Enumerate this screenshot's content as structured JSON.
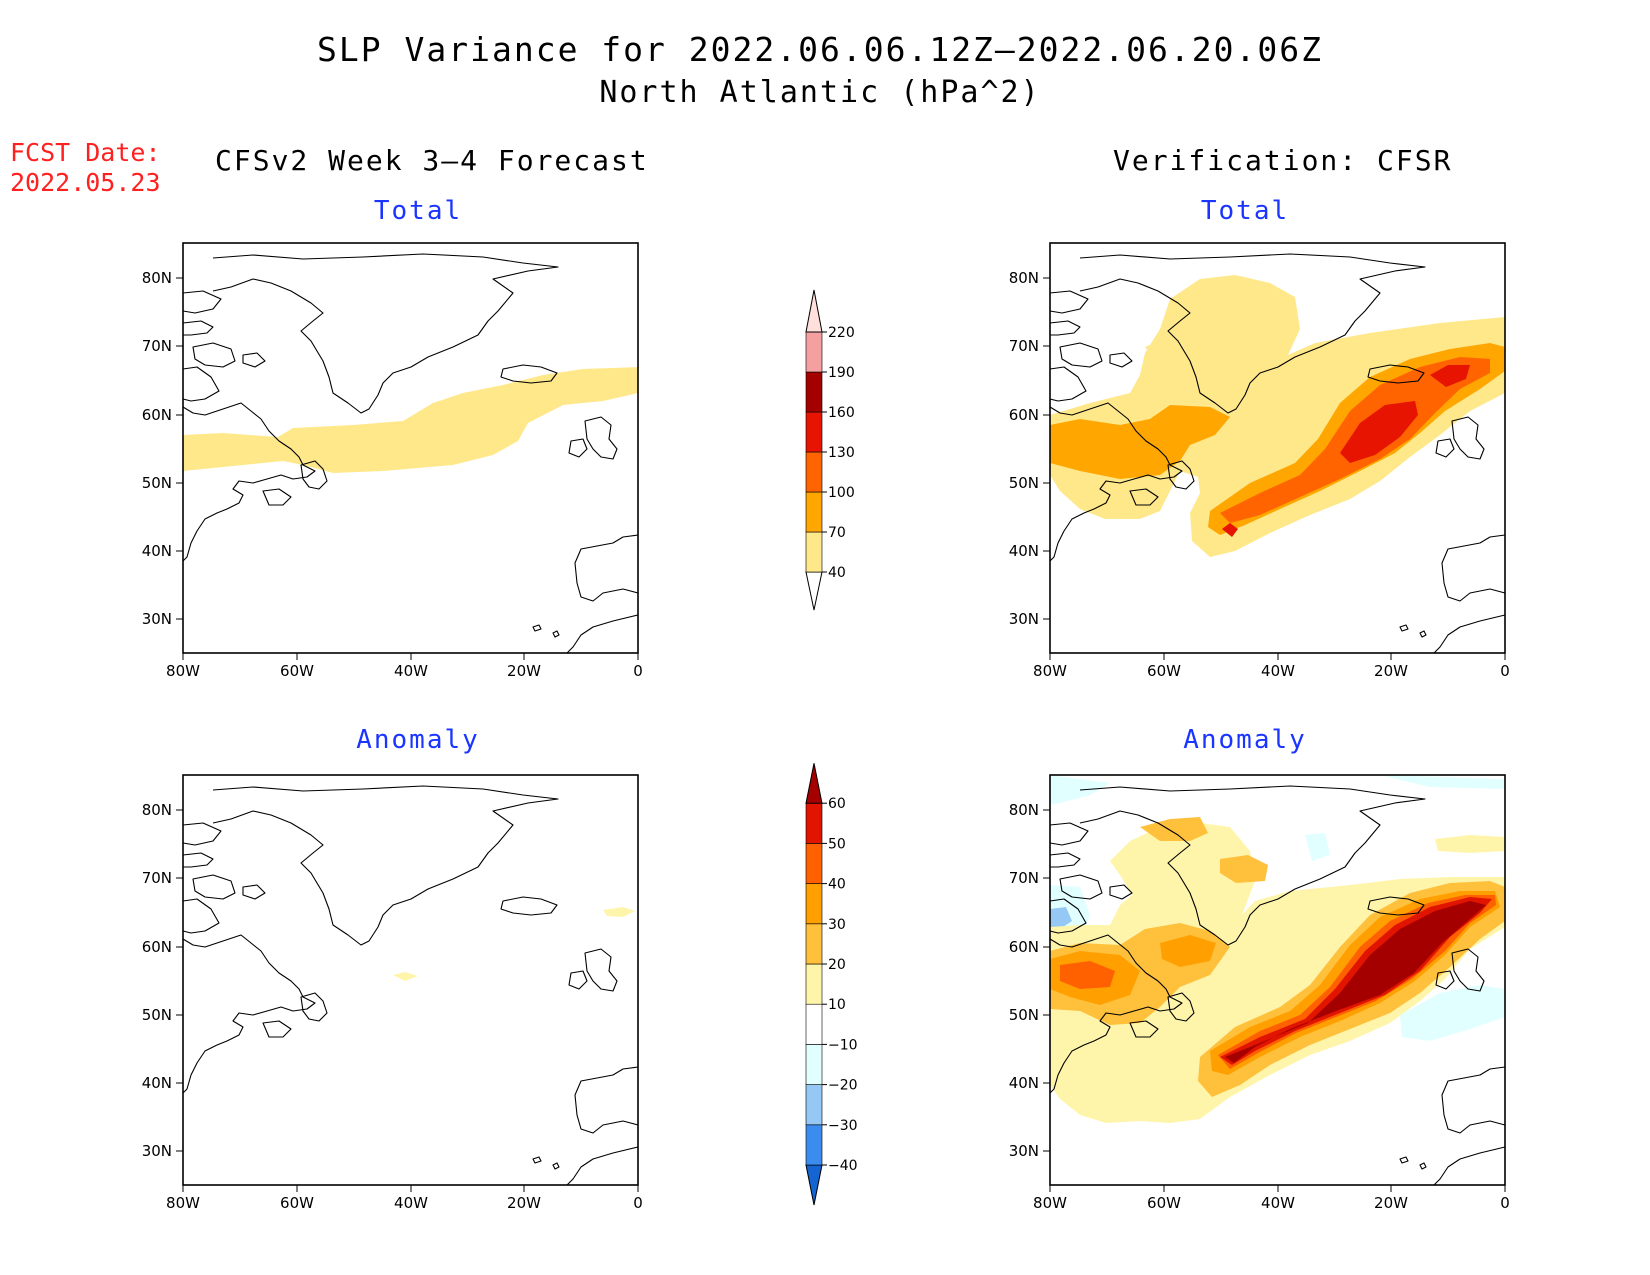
{
  "title": {
    "line1": "SLP Variance for 2022.06.06.12Z—2022.06.20.06Z",
    "line2": "North Atlantic (hPa^2)"
  },
  "forecast": {
    "label": "FCST Date:",
    "date": "2022.05.23"
  },
  "columns": {
    "left": "CFSv2 Week 3—4 Forecast",
    "right": "Verification: CFSR"
  },
  "panel_titles": {
    "forecast_total": "Total",
    "verification_total": "Total",
    "forecast_anomaly": "Anomaly",
    "verification_anomaly": "Anomaly"
  },
  "axes": {
    "lat_labels": [
      "80N",
      "70N",
      "60N",
      "50N",
      "40N",
      "30N"
    ],
    "lon_labels": [
      "80W",
      "60W",
      "40W",
      "20W",
      "0"
    ]
  },
  "colorbars": {
    "total": {
      "levels": [
        "40",
        "70",
        "100",
        "130",
        "160",
        "190",
        "220"
      ],
      "colors": [
        "#ffe88a",
        "#ffa600",
        "#ff6400",
        "#e61400",
        "#a50000",
        "#f5a0a0",
        "#ffe0dc"
      ]
    },
    "anomaly": {
      "levels": [
        "−40",
        "−30",
        "−20",
        "−10",
        "10",
        "20",
        "30",
        "40",
        "50",
        "60"
      ],
      "colors": [
        "#1464d2",
        "#3c8cf0",
        "#96c8f5",
        "#e1ffff",
        "#ffffff",
        "#fff5aa",
        "#ffc03c",
        "#ffa000",
        "#ff6000",
        "#e11400",
        "#a50000"
      ]
    }
  },
  "shading_colors": {
    "c40": "#ffe88a",
    "c70": "#ffa600",
    "c100": "#ff6400",
    "c130": "#e61400",
    "a_neg10": "#e1ffff",
    "a_neg20": "#96c8f5",
    "a10": "#fff5aa",
    "a20": "#ffc03c",
    "a30": "#ffa000",
    "a40": "#ff6000",
    "a50": "#e11400",
    "a60": "#a50000"
  }
}
